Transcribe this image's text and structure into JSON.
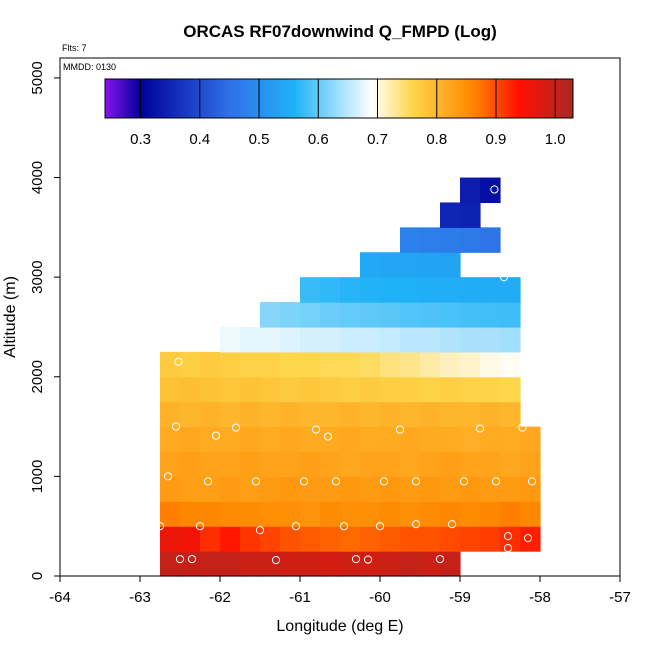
{
  "chart_data": {
    "type": "heatmap",
    "title": "ORCAS RF07downwind Q_FMPD (Log)",
    "xlabel": "Longitude (deg E)",
    "ylabel": "Altitude (m)",
    "xlim": [
      -64,
      -57
    ],
    "ylim": [
      0,
      5200
    ],
    "xticks": [
      "-64",
      "-63",
      "-62",
      "-61",
      "-60",
      "-59",
      "-58",
      "-57"
    ],
    "xtick_values": [
      -64,
      -63,
      -62,
      -61,
      -60,
      -59,
      -58,
      -57
    ],
    "yticks": [
      "0",
      "1000",
      "2000",
      "3000",
      "4000",
      "5000"
    ],
    "ytick_values": [
      0,
      1000,
      2000,
      3000,
      4000,
      5000
    ],
    "annotations": {
      "flights": "Flts: 7",
      "date": "MMDD: 0130"
    },
    "colorbar": {
      "range": [
        0.24,
        1.03
      ],
      "tick_labels": [
        "0.3",
        "0.4",
        "0.5",
        "0.6",
        "0.7",
        "0.8",
        "0.9",
        "1.0"
      ],
      "tick_values": [
        0.3,
        0.4,
        0.5,
        0.6,
        0.7,
        0.8,
        0.9,
        1.0
      ],
      "stops": [
        "#8a12f0",
        "#00009a",
        "#3070e8",
        "#1fb2f7",
        "#ffffff",
        "#fed64a",
        "#ff8700",
        "#ff1000",
        "#a82a24"
      ],
      "stop_values": [
        0.24,
        0.3,
        0.45,
        0.56,
        0.69,
        0.76,
        0.86,
        0.94,
        1.03
      ]
    },
    "grid": {
      "lon_step": 0.25,
      "alt_step": 250
    },
    "rows": [
      {
        "alt": [
          0,
          250
        ],
        "lon": [
          -62.75,
          -59.0
        ],
        "values": [
          1.0,
          1.0,
          1.0,
          1.0,
          0.995,
          0.995,
          0.99,
          0.99,
          0.985,
          0.99,
          0.99,
          0.995,
          1.0,
          0.995,
          1.0
        ]
      },
      {
        "alt": [
          250,
          500
        ],
        "lon": [
          -62.75,
          -58.0
        ],
        "values": [
          0.96,
          0.955,
          0.92,
          0.935,
          0.915,
          0.905,
          0.895,
          0.89,
          0.885,
          0.88,
          0.885,
          0.89,
          0.895,
          0.895,
          0.9,
          0.905,
          0.91,
          0.92,
          0.93
        ]
      },
      {
        "alt": [
          500,
          750
        ],
        "lon": [
          -62.75,
          -58.0
        ],
        "values": [
          0.865,
          0.86,
          0.86,
          0.855,
          0.855,
          0.85,
          0.85,
          0.845,
          0.855,
          0.85,
          0.85,
          0.855,
          0.85,
          0.855,
          0.86,
          0.855,
          0.86,
          0.865,
          0.86
        ]
      },
      {
        "alt": [
          750,
          1000
        ],
        "lon": [
          -62.75,
          -58.0
        ],
        "values": [
          0.835,
          0.83,
          0.83,
          0.835,
          0.83,
          0.835,
          0.84,
          0.835,
          0.835,
          0.84,
          0.835,
          0.84,
          0.835,
          0.84,
          0.835,
          0.84,
          0.835,
          0.835,
          0.84
        ]
      },
      {
        "alt": [
          1000,
          1250
        ],
        "lon": [
          -62.75,
          -58.0
        ],
        "values": [
          0.825,
          0.83,
          0.825,
          0.825,
          0.83,
          0.825,
          0.825,
          0.83,
          0.825,
          0.82,
          0.825,
          0.825,
          0.82,
          0.825,
          0.83,
          0.825,
          0.825,
          0.82,
          0.825
        ]
      },
      {
        "alt": [
          1250,
          1500
        ],
        "lon": [
          -62.75,
          -58.0
        ],
        "values": [
          0.815,
          0.82,
          0.815,
          0.815,
          0.82,
          0.815,
          0.82,
          0.815,
          0.815,
          0.82,
          0.815,
          0.815,
          0.82,
          0.815,
          0.815,
          0.81,
          0.815,
          0.815,
          0.82
        ]
      },
      {
        "alt": [
          1500,
          1750
        ],
        "lon": [
          -62.75,
          -58.25
        ],
        "values": [
          0.805,
          0.8,
          0.805,
          0.8,
          0.805,
          0.8,
          0.805,
          0.8,
          0.8,
          0.805,
          0.8,
          0.805,
          0.8,
          0.805,
          0.8,
          0.8,
          0.805,
          0.8
        ]
      },
      {
        "alt": [
          1750,
          2000
        ],
        "lon": [
          -62.75,
          -58.25
        ],
        "values": [
          0.785,
          0.79,
          0.785,
          0.78,
          0.785,
          0.78,
          0.775,
          0.78,
          0.775,
          0.77,
          0.775,
          0.77,
          0.77,
          0.765,
          0.77,
          0.765,
          0.765,
          0.76
        ]
      },
      {
        "alt": [
          2000,
          2250
        ],
        "lon": [
          -62.75,
          -58.25
        ],
        "values": [
          0.775,
          0.77,
          0.775,
          0.77,
          0.765,
          0.765,
          0.76,
          0.76,
          0.755,
          0.755,
          0.75,
          0.74,
          0.735,
          0.725,
          0.715,
          0.71,
          0.7,
          0.695
        ]
      },
      {
        "alt": [
          2250,
          2500
        ],
        "lon": [
          -62.0,
          -58.25
        ],
        "values": [
          0.68,
          0.675,
          0.675,
          0.67,
          0.665,
          0.665,
          0.66,
          0.66,
          0.655,
          0.65,
          0.65,
          0.645,
          0.64,
          0.64,
          0.635
        ]
      },
      {
        "alt": [
          2500,
          2750
        ],
        "lon": [
          -61.5,
          -58.25
        ],
        "values": [
          0.62,
          0.615,
          0.61,
          0.605,
          0.6,
          0.598,
          0.595,
          0.59,
          0.588,
          0.585,
          0.582,
          0.58,
          0.578
        ]
      },
      {
        "alt": [
          2750,
          3000
        ],
        "lon": [
          -61.0,
          -58.25
        ],
        "values": [
          0.575,
          0.57,
          0.565,
          0.562,
          0.56,
          0.558,
          0.555,
          0.555,
          0.55,
          0.552,
          0.55
        ]
      },
      {
        "alt": [
          3000,
          3250
        ],
        "lon": [
          -60.25,
          -59.0
        ],
        "values": [
          0.545,
          0.54,
          0.54,
          0.535,
          0.535
        ]
      },
      {
        "alt": [
          3250,
          3500
        ],
        "lon": [
          -59.75,
          -58.5
        ],
        "values": [
          0.48,
          0.475,
          0.47,
          0.465,
          0.455
        ]
      },
      {
        "alt": [
          3500,
          3750
        ],
        "lon": [
          -59.25,
          -58.75
        ],
        "values": [
          0.35,
          0.345
        ]
      },
      {
        "alt": [
          3750,
          4000
        ],
        "lon": [
          -59.0,
          -58.75
        ],
        "values": [
          0.34
        ]
      },
      {
        "alt": [
          3750,
          4000
        ],
        "lon": [
          -58.75,
          -58.5
        ],
        "values": [
          0.32
        ]
      }
    ],
    "observation_points": [
      {
        "lon": -62.5,
        "alt": 170
      },
      {
        "lon": -62.35,
        "alt": 170
      },
      {
        "lon": -61.3,
        "alt": 160
      },
      {
        "lon": -60.3,
        "alt": 170
      },
      {
        "lon": -60.15,
        "alt": 165
      },
      {
        "lon": -59.25,
        "alt": 170
      },
      {
        "lon": -62.75,
        "alt": 500
      },
      {
        "lon": -62.25,
        "alt": 500
      },
      {
        "lon": -61.5,
        "alt": 460
      },
      {
        "lon": -61.05,
        "alt": 500
      },
      {
        "lon": -60.45,
        "alt": 500
      },
      {
        "lon": -60.0,
        "alt": 500
      },
      {
        "lon": -59.55,
        "alt": 520
      },
      {
        "lon": -59.1,
        "alt": 520
      },
      {
        "lon": -58.4,
        "alt": 400
      },
      {
        "lon": -58.15,
        "alt": 380
      },
      {
        "lon": -58.4,
        "alt": 280
      },
      {
        "lon": -62.65,
        "alt": 1000
      },
      {
        "lon": -62.15,
        "alt": 950
      },
      {
        "lon": -61.55,
        "alt": 950
      },
      {
        "lon": -60.95,
        "alt": 950
      },
      {
        "lon": -60.55,
        "alt": 950
      },
      {
        "lon": -59.95,
        "alt": 950
      },
      {
        "lon": -59.55,
        "alt": 950
      },
      {
        "lon": -58.95,
        "alt": 950
      },
      {
        "lon": -58.55,
        "alt": 950
      },
      {
        "lon": -58.1,
        "alt": 950
      },
      {
        "lon": -62.55,
        "alt": 1500
      },
      {
        "lon": -62.05,
        "alt": 1410
      },
      {
        "lon": -61.8,
        "alt": 1490
      },
      {
        "lon": -60.8,
        "alt": 1470
      },
      {
        "lon": -60.65,
        "alt": 1400
      },
      {
        "lon": -59.75,
        "alt": 1470
      },
      {
        "lon": -58.75,
        "alt": 1480
      },
      {
        "lon": -58.22,
        "alt": 1490
      },
      {
        "lon": -62.52,
        "alt": 2150
      },
      {
        "lon": -58.32,
        "alt": 2200
      },
      {
        "lon": -58.45,
        "alt": 3000
      },
      {
        "lon": -58.57,
        "alt": 3880
      }
    ]
  }
}
